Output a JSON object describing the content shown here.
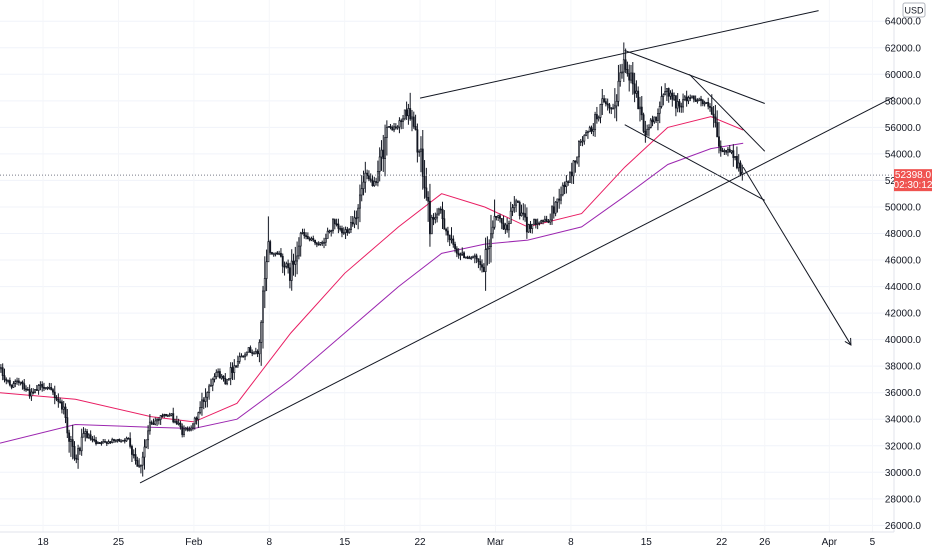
{
  "chart_data": {
    "type": "candlestick",
    "currency": "USD",
    "ylim": [
      25500,
      65600
    ],
    "yticks": [
      26000,
      28000,
      30000,
      32000,
      34000,
      36000,
      38000,
      40000,
      42000,
      44000,
      46000,
      48000,
      50000,
      52000,
      54000,
      56000,
      58000,
      60000,
      62000,
      64000
    ],
    "x_dates": [
      "2021-01-14",
      "2021-04-07"
    ],
    "xticks": [
      {
        "date": "2021-01-18",
        "label": "18"
      },
      {
        "date": "2021-01-25",
        "label": "25"
      },
      {
        "date": "2021-02-01",
        "label": "Feb"
      },
      {
        "date": "2021-02-08",
        "label": "8"
      },
      {
        "date": "2021-02-15",
        "label": "15"
      },
      {
        "date": "2021-02-22",
        "label": "22"
      },
      {
        "date": "2021-03-01",
        "label": "Mar"
      },
      {
        "date": "2021-03-08",
        "label": "8"
      },
      {
        "date": "2021-03-15",
        "label": "15"
      },
      {
        "date": "2021-03-22",
        "label": "22"
      },
      {
        "date": "2021-03-26",
        "label": "26"
      },
      {
        "date": "2021-04-01",
        "label": "Apr"
      },
      {
        "date": "2021-04-05",
        "label": "5"
      }
    ],
    "last_price": {
      "value": 52398.0,
      "label": "52398.0",
      "countdown": "02:30:12",
      "color": "#ef5350"
    },
    "up_color": "#ffffff",
    "down_color": "#131722",
    "closes": [
      [
        "2021-01-14",
        37800
      ],
      [
        "2021-01-15",
        36500
      ],
      [
        "2021-01-16",
        36900
      ],
      [
        "2021-01-17",
        35800
      ],
      [
        "2021-01-18",
        36600
      ],
      [
        "2021-01-19",
        36000
      ],
      [
        "2021-01-20",
        34800
      ],
      [
        "2021-01-21",
        30800
      ],
      [
        "2021-01-22",
        32900
      ],
      [
        "2021-01-23",
        32100
      ],
      [
        "2021-01-24",
        32300
      ],
      [
        "2021-01-25",
        32400
      ],
      [
        "2021-01-26",
        32500
      ],
      [
        "2021-01-27",
        30400
      ],
      [
        "2021-01-28",
        33400
      ],
      [
        "2021-01-29",
        34300
      ],
      [
        "2021-01-30",
        34300
      ],
      [
        "2021-01-31",
        33100
      ],
      [
        "2021-02-01",
        33500
      ],
      [
        "2021-02-02",
        35500
      ],
      [
        "2021-02-03",
        37700
      ],
      [
        "2021-02-04",
        36900
      ],
      [
        "2021-02-05",
        38300
      ],
      [
        "2021-02-06",
        39300
      ],
      [
        "2021-02-07",
        38900
      ],
      [
        "2021-02-08",
        46500
      ],
      [
        "2021-02-09",
        46500
      ],
      [
        "2021-02-10",
        44800
      ],
      [
        "2021-02-11",
        48000
      ],
      [
        "2021-02-12",
        47400
      ],
      [
        "2021-02-13",
        47200
      ],
      [
        "2021-02-14",
        48700
      ],
      [
        "2021-02-15",
        48000
      ],
      [
        "2021-02-16",
        49200
      ],
      [
        "2021-02-17",
        52200
      ],
      [
        "2021-02-18",
        51600
      ],
      [
        "2021-02-19",
        55900
      ],
      [
        "2021-02-20",
        56000
      ],
      [
        "2021-02-21",
        57500
      ],
      [
        "2021-02-22",
        54200
      ],
      [
        "2021-02-23",
        48900
      ],
      [
        "2021-02-24",
        49700
      ],
      [
        "2021-02-25",
        47100
      ],
      [
        "2021-02-26",
        46300
      ],
      [
        "2021-02-27",
        46200
      ],
      [
        "2021-02-28",
        45200
      ],
      [
        "2021-03-01",
        49600
      ],
      [
        "2021-03-02",
        48400
      ],
      [
        "2021-03-03",
        50400
      ],
      [
        "2021-03-04",
        48400
      ],
      [
        "2021-03-05",
        49000
      ],
      [
        "2021-03-06",
        48900
      ],
      [
        "2021-03-07",
        50900
      ],
      [
        "2021-03-08",
        52300
      ],
      [
        "2021-03-09",
        54900
      ],
      [
        "2021-03-10",
        55900
      ],
      [
        "2021-03-11",
        57800
      ],
      [
        "2021-03-12",
        57200
      ],
      [
        "2021-03-13",
        61200
      ],
      [
        "2021-03-14",
        59000
      ],
      [
        "2021-03-15",
        55600
      ],
      [
        "2021-03-16",
        56900
      ],
      [
        "2021-03-17",
        58900
      ],
      [
        "2021-03-18",
        57600
      ],
      [
        "2021-03-19",
        58300
      ],
      [
        "2021-03-20",
        58100
      ],
      [
        "2021-03-21",
        57400
      ],
      [
        "2021-03-22",
        54100
      ],
      [
        "2021-03-23",
        54300
      ],
      [
        "2021-03-24",
        52400
      ]
    ],
    "moving_averages": [
      {
        "color": "#e91e63",
        "values": [
          [
            "2021-01-14",
            36000
          ],
          [
            "2021-01-21",
            35500
          ],
          [
            "2021-01-28",
            34200
          ],
          [
            "2021-02-01",
            33800
          ],
          [
            "2021-02-05",
            35200
          ],
          [
            "2021-02-10",
            40500
          ],
          [
            "2021-02-15",
            45000
          ],
          [
            "2021-02-20",
            48500
          ],
          [
            "2021-02-24",
            51000
          ],
          [
            "2021-02-28",
            50000
          ],
          [
            "2021-03-04",
            48500
          ],
          [
            "2021-03-09",
            49500
          ],
          [
            "2021-03-13",
            53000
          ],
          [
            "2021-03-17",
            56000
          ],
          [
            "2021-03-21",
            56800
          ],
          [
            "2021-03-24",
            55800
          ]
        ]
      },
      {
        "color": "#9c27b0",
        "values": [
          [
            "2021-01-14",
            32200
          ],
          [
            "2021-01-21",
            33600
          ],
          [
            "2021-01-28",
            33400
          ],
          [
            "2021-02-01",
            33300
          ],
          [
            "2021-02-05",
            34000
          ],
          [
            "2021-02-10",
            37000
          ],
          [
            "2021-02-15",
            40500
          ],
          [
            "2021-02-20",
            44000
          ],
          [
            "2021-02-24",
            46500
          ],
          [
            "2021-02-28",
            47200
          ],
          [
            "2021-03-04",
            47500
          ],
          [
            "2021-03-09",
            48500
          ],
          [
            "2021-03-13",
            50800
          ],
          [
            "2021-03-17",
            53200
          ],
          [
            "2021-03-21",
            54400
          ],
          [
            "2021-03-24",
            54800
          ]
        ]
      }
    ],
    "trendlines": [
      {
        "from": [
          "2021-01-27",
          29200
        ],
        "to": [
          "2021-04-07",
          58300
        ]
      },
      {
        "from": [
          "2021-02-22",
          58200
        ],
        "to": [
          "2021-03-31",
          64800
        ]
      },
      {
        "from": [
          "2021-03-13",
          61800
        ],
        "to": [
          "2021-03-26",
          57800
        ]
      },
      {
        "from": [
          "2021-03-19",
          60000
        ],
        "to": [
          "2021-03-26",
          54200
        ]
      },
      {
        "from": [
          "2021-03-13",
          56200
        ],
        "to": [
          "2021-03-26",
          50500
        ]
      },
      {
        "from": [
          "2021-03-24",
          53000
        ],
        "to": [
          "2021-04-03",
          39600
        ],
        "arrow": true
      }
    ]
  }
}
